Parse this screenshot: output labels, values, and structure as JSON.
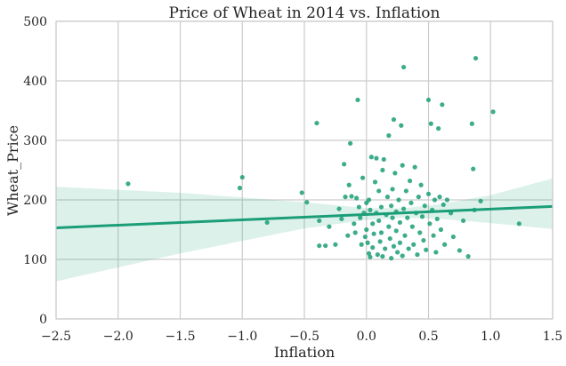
{
  "chart_data": {
    "type": "scatter",
    "title": "Price of Wheat in 2014 vs. Inflation",
    "xlabel": "Inflation",
    "ylabel": "Wheat_Price",
    "xlim": [
      -2.5,
      1.5
    ],
    "ylim": [
      0,
      500
    ],
    "xticks": [
      -2.5,
      -2.0,
      -1.5,
      -1.0,
      -0.5,
      0.0,
      0.5,
      1.0,
      1.5
    ],
    "xtick_labels": [
      "−2.5",
      "−2.0",
      "−1.5",
      "−1.0",
      "−0.5",
      "0.0",
      "0.5",
      "1.0",
      "1.5"
    ],
    "yticks": [
      0,
      100,
      200,
      300,
      400,
      500
    ],
    "ytick_labels": [
      "0",
      "100",
      "200",
      "300",
      "400",
      "500"
    ],
    "grid": true,
    "legend": "none",
    "color": "#1b9e77",
    "regression": {
      "slope": 9.0,
      "intercept": 175.5,
      "ci_band": [
        {
          "x": -2.5,
          "lower": 63,
          "upper": 222
        },
        {
          "x": -1.5,
          "lower": 110,
          "upper": 212
        },
        {
          "x": -0.5,
          "lower": 152,
          "upper": 196
        },
        {
          "x": 0.0,
          "lower": 166,
          "upper": 186
        },
        {
          "x": 0.3,
          "lower": 170,
          "upper": 186
        },
        {
          "x": 0.6,
          "lower": 168,
          "upper": 193
        },
        {
          "x": 1.0,
          "lower": 161,
          "upper": 208
        },
        {
          "x": 1.5,
          "lower": 151,
          "upper": 236
        }
      ]
    },
    "points": [
      {
        "x": -1.92,
        "y": 227
      },
      {
        "x": -1.0,
        "y": 238
      },
      {
        "x": -1.02,
        "y": 220
      },
      {
        "x": -0.8,
        "y": 162
      },
      {
        "x": -0.52,
        "y": 212
      },
      {
        "x": -0.48,
        "y": 196
      },
      {
        "x": -0.4,
        "y": 329
      },
      {
        "x": -0.38,
        "y": 165
      },
      {
        "x": -0.38,
        "y": 123
      },
      {
        "x": -0.33,
        "y": 123
      },
      {
        "x": -0.3,
        "y": 155
      },
      {
        "x": -0.25,
        "y": 125
      },
      {
        "x": -0.22,
        "y": 185
      },
      {
        "x": -0.2,
        "y": 168
      },
      {
        "x": -0.18,
        "y": 260
      },
      {
        "x": -0.17,
        "y": 205
      },
      {
        "x": -0.15,
        "y": 140
      },
      {
        "x": -0.14,
        "y": 225
      },
      {
        "x": -0.13,
        "y": 295
      },
      {
        "x": -0.12,
        "y": 206
      },
      {
        "x": -0.1,
        "y": 160
      },
      {
        "x": -0.09,
        "y": 145
      },
      {
        "x": -0.08,
        "y": 203
      },
      {
        "x": -0.07,
        "y": 368
      },
      {
        "x": -0.06,
        "y": 188
      },
      {
        "x": -0.05,
        "y": 170
      },
      {
        "x": -0.04,
        "y": 125
      },
      {
        "x": -0.03,
        "y": 237
      },
      {
        "x": -0.02,
        "y": 178
      },
      {
        "x": -0.01,
        "y": 138
      },
      {
        "x": 0.0,
        "y": 195
      },
      {
        "x": 0.0,
        "y": 150
      },
      {
        "x": 0.01,
        "y": 128
      },
      {
        "x": 0.02,
        "y": 110
      },
      {
        "x": 0.02,
        "y": 200
      },
      {
        "x": 0.03,
        "y": 183
      },
      {
        "x": 0.03,
        "y": 104
      },
      {
        "x": 0.04,
        "y": 272
      },
      {
        "x": 0.05,
        "y": 160
      },
      {
        "x": 0.05,
        "y": 120
      },
      {
        "x": 0.06,
        "y": 143
      },
      {
        "x": 0.07,
        "y": 230
      },
      {
        "x": 0.08,
        "y": 270
      },
      {
        "x": 0.08,
        "y": 178
      },
      {
        "x": 0.09,
        "y": 108
      },
      {
        "x": 0.1,
        "y": 215
      },
      {
        "x": 0.1,
        "y": 165
      },
      {
        "x": 0.11,
        "y": 130
      },
      {
        "x": 0.12,
        "y": 188
      },
      {
        "x": 0.12,
        "y": 145
      },
      {
        "x": 0.13,
        "y": 250
      },
      {
        "x": 0.13,
        "y": 105
      },
      {
        "x": 0.14,
        "y": 268
      },
      {
        "x": 0.15,
        "y": 118
      },
      {
        "x": 0.16,
        "y": 175
      },
      {
        "x": 0.17,
        "y": 205
      },
      {
        "x": 0.18,
        "y": 308
      },
      {
        "x": 0.18,
        "y": 155
      },
      {
        "x": 0.19,
        "y": 135
      },
      {
        "x": 0.2,
        "y": 190
      },
      {
        "x": 0.2,
        "y": 102
      },
      {
        "x": 0.21,
        "y": 218
      },
      {
        "x": 0.21,
        "y": 170
      },
      {
        "x": 0.22,
        "y": 335
      },
      {
        "x": 0.22,
        "y": 122
      },
      {
        "x": 0.23,
        "y": 245
      },
      {
        "x": 0.24,
        "y": 180
      },
      {
        "x": 0.24,
        "y": 148
      },
      {
        "x": 0.25,
        "y": 112
      },
      {
        "x": 0.26,
        "y": 200
      },
      {
        "x": 0.27,
        "y": 162
      },
      {
        "x": 0.27,
        "y": 128
      },
      {
        "x": 0.28,
        "y": 325
      },
      {
        "x": 0.29,
        "y": 258
      },
      {
        "x": 0.29,
        "y": 106
      },
      {
        "x": 0.3,
        "y": 423
      },
      {
        "x": 0.3,
        "y": 185
      },
      {
        "x": 0.31,
        "y": 140
      },
      {
        "x": 0.32,
        "y": 215
      },
      {
        "x": 0.33,
        "y": 170
      },
      {
        "x": 0.34,
        "y": 118
      },
      {
        "x": 0.35,
        "y": 232
      },
      {
        "x": 0.36,
        "y": 195
      },
      {
        "x": 0.37,
        "y": 155
      },
      {
        "x": 0.38,
        "y": 125
      },
      {
        "x": 0.39,
        "y": 255
      },
      {
        "x": 0.4,
        "y": 178
      },
      {
        "x": 0.41,
        "y": 108
      },
      {
        "x": 0.42,
        "y": 205
      },
      {
        "x": 0.43,
        "y": 145
      },
      {
        "x": 0.44,
        "y": 225
      },
      {
        "x": 0.45,
        "y": 172
      },
      {
        "x": 0.46,
        "y": 132
      },
      {
        "x": 0.47,
        "y": 190
      },
      {
        "x": 0.48,
        "y": 116
      },
      {
        "x": 0.5,
        "y": 368
      },
      {
        "x": 0.5,
        "y": 210
      },
      {
        "x": 0.51,
        "y": 160
      },
      {
        "x": 0.52,
        "y": 328
      },
      {
        "x": 0.53,
        "y": 183
      },
      {
        "x": 0.54,
        "y": 140
      },
      {
        "x": 0.55,
        "y": 200
      },
      {
        "x": 0.56,
        "y": 112
      },
      {
        "x": 0.57,
        "y": 168
      },
      {
        "x": 0.58,
        "y": 320
      },
      {
        "x": 0.59,
        "y": 205
      },
      {
        "x": 0.6,
        "y": 150
      },
      {
        "x": 0.61,
        "y": 360
      },
      {
        "x": 0.62,
        "y": 192
      },
      {
        "x": 0.63,
        "y": 125
      },
      {
        "x": 0.65,
        "y": 200
      },
      {
        "x": 0.68,
        "y": 178
      },
      {
        "x": 0.7,
        "y": 138
      },
      {
        "x": 0.75,
        "y": 115
      },
      {
        "x": 0.78,
        "y": 165
      },
      {
        "x": 0.82,
        "y": 105
      },
      {
        "x": 0.85,
        "y": 328
      },
      {
        "x": 0.86,
        "y": 252
      },
      {
        "x": 0.88,
        "y": 438
      },
      {
        "x": 0.87,
        "y": 183
      },
      {
        "x": 0.92,
        "y": 198
      },
      {
        "x": 1.02,
        "y": 348
      },
      {
        "x": 1.23,
        "y": 160
      }
    ]
  }
}
